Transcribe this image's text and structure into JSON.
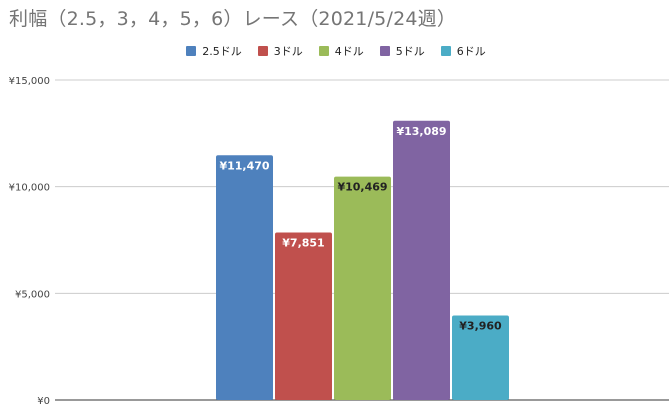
{
  "chart_data": {
    "type": "bar",
    "title": "利幅（2.5，3，4，5，6）レース（2021/5/24週）",
    "categories": [
      ""
    ],
    "series": [
      {
        "name": "2.5ドル",
        "values": [
          11470
        ],
        "label": "¥11,470",
        "color": "#4e81bd",
        "label_color": "#ffffff"
      },
      {
        "name": "3ドル",
        "values": [
          7851
        ],
        "label": "¥7,851",
        "color": "#c0504d",
        "label_color": "#ffffff"
      },
      {
        "name": "4ドル",
        "values": [
          10469
        ],
        "label": "¥10,469",
        "color": "#9bbb59",
        "label_color": "#222222"
      },
      {
        "name": "5ドル",
        "values": [
          13089
        ],
        "label": "¥13,089",
        "color": "#8064a2",
        "label_color": "#ffffff"
      },
      {
        "name": "6ドル",
        "values": [
          3960
        ],
        "label": "¥3,960",
        "color": "#4bacc6",
        "label_color": "#222222"
      }
    ],
    "ylim": [
      0,
      15000
    ],
    "yticks": [
      0,
      5000,
      10000,
      15000
    ],
    "ytick_labels": [
      "¥0",
      "¥5,000",
      "¥10,000",
      "¥15,000"
    ],
    "grid": true,
    "legend": "top-center",
    "xlabel": "",
    "ylabel": ""
  }
}
